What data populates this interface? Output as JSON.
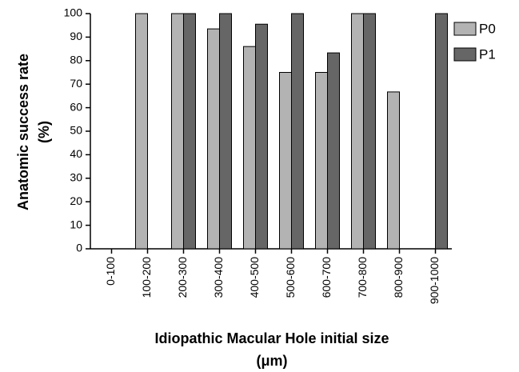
{
  "chart_data": {
    "type": "bar",
    "x_label": [
      "Idiopathic Macular Hole initial size",
      "(μm)"
    ],
    "y_label": [
      "Anatomic success rate",
      "(%)"
    ],
    "categories": [
      "0-100",
      "100-200",
      "200-300",
      "300-400",
      "400-500",
      "500-600",
      "600-700",
      "700-800",
      "800-900",
      "900-1000"
    ],
    "series": [
      {
        "name": "P0",
        "color": "#b3b3b3",
        "values": [
          null,
          100,
          100,
          93.5,
          86,
          75,
          75,
          100,
          66.7,
          null
        ]
      },
      {
        "name": "P1",
        "color": "#666666",
        "values": [
          null,
          null,
          100,
          100,
          95.5,
          100,
          83.3,
          100,
          null,
          100
        ]
      }
    ],
    "ylim": [
      0,
      100
    ],
    "yticks": [
      0,
      10,
      20,
      30,
      40,
      50,
      60,
      70,
      80,
      90,
      100
    ],
    "legend": "right"
  }
}
